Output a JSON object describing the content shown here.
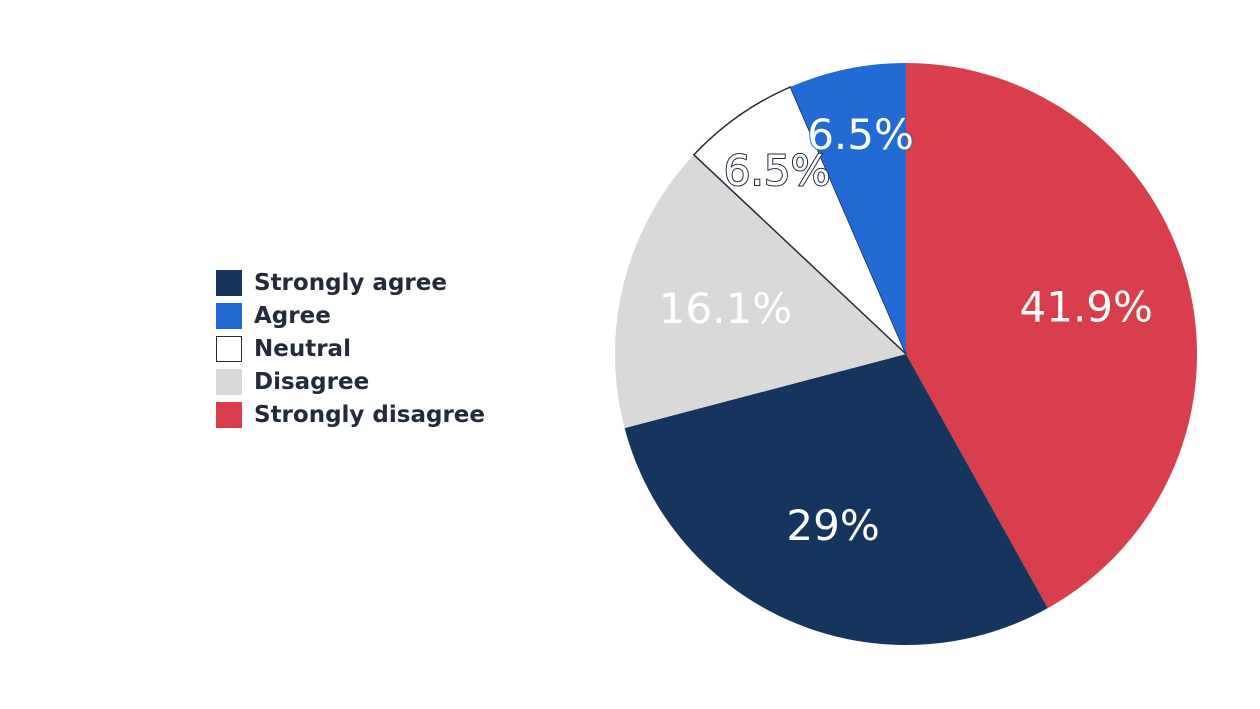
{
  "chart_data": {
    "type": "pie",
    "categories": [
      "Strongly disagree",
      "Strongly agree",
      "Disagree",
      "Neutral",
      "Agree"
    ],
    "values": [
      41.9,
      29,
      16.1,
      6.5,
      6.5
    ],
    "data_labels": [
      "41.9%",
      "29%",
      "16.1%",
      "6.5%",
      "6.5%"
    ],
    "colors": [
      "#d93e4c",
      "#15355e",
      "#d9d9d9",
      "#ffffff",
      "#226bd5"
    ],
    "label_colors": [
      "#ffffff",
      "#ffffff",
      "#ffffff",
      "#ffffff",
      "#ffffff"
    ],
    "label_outlined": [
      false,
      false,
      false,
      true,
      true
    ],
    "label_outline_colors": [
      "",
      "",
      "",
      "#222b3a",
      "#226bd5"
    ],
    "start_angle_deg": 0,
    "direction": "clockwise",
    "legend_position": "left",
    "legend": [
      {
        "label": "Strongly agree",
        "color": "#15355e"
      },
      {
        "label": "Agree",
        "color": "#226bd5"
      },
      {
        "label": "Neutral",
        "color": "#ffffff"
      },
      {
        "label": "Disagree",
        "color": "#d9d9d9"
      },
      {
        "label": "Strongly disagree",
        "color": "#d93e4c"
      }
    ]
  }
}
